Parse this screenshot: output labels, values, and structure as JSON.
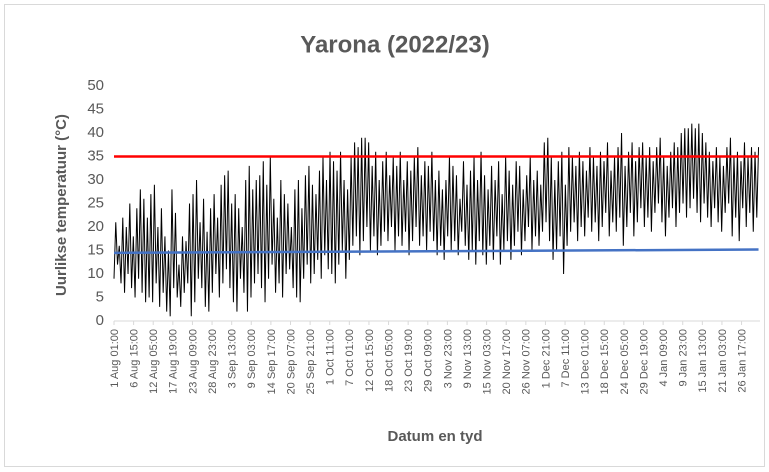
{
  "chart_data": {
    "type": "line",
    "title": "Yarona (2022/23)",
    "x_label": "Datum en tyd",
    "y_label": "Uurlikse temperatuur (°C)",
    "xlim": [
      0,
      4414
    ],
    "xticks": [
      {
        "value": 0,
        "label": "1 Aug 01:00"
      },
      {
        "value": 134,
        "label": "6 Aug 15:00"
      },
      {
        "value": 268,
        "label": "12 Aug 05:00"
      },
      {
        "value": 402,
        "label": "17 Aug 19:00"
      },
      {
        "value": 536,
        "label": "23 Aug 09:00"
      },
      {
        "value": 670,
        "label": "28 Aug 23:00"
      },
      {
        "value": 804,
        "label": "3 Sep 13:00"
      },
      {
        "value": 938,
        "label": "9 Sep 03:00"
      },
      {
        "value": 1072,
        "label": "14 Sep 17:00"
      },
      {
        "value": 1206,
        "label": "20 Sep 07:00"
      },
      {
        "value": 1340,
        "label": "25 Sep 21:00"
      },
      {
        "value": 1474,
        "label": "1 Oct 11:00"
      },
      {
        "value": 1608,
        "label": "7 Oct 01:00"
      },
      {
        "value": 1742,
        "label": "12 Oct 15:00"
      },
      {
        "value": 1876,
        "label": "18 Oct 05:00"
      },
      {
        "value": 2010,
        "label": "23 Oct 19:00"
      },
      {
        "value": 2144,
        "label": "29 Oct 09:00"
      },
      {
        "value": 2278,
        "label": "3 Nov 23:00"
      },
      {
        "value": 2412,
        "label": "9 Nov 13:00"
      },
      {
        "value": 2546,
        "label": "15 Nov 03:00"
      },
      {
        "value": 2680,
        "label": "20 Nov 17:00"
      },
      {
        "value": 2814,
        "label": "26 Nov 07:00"
      },
      {
        "value": 2948,
        "label": "1 Dec 21:00"
      },
      {
        "value": 3082,
        "label": "7 Dec 11:00"
      },
      {
        "value": 3216,
        "label": "13 Dec 01:00"
      },
      {
        "value": 3350,
        "label": "18 Dec 15:00"
      },
      {
        "value": 3484,
        "label": "24 Dec 05:00"
      },
      {
        "value": 3618,
        "label": "29 Dec 19:00"
      },
      {
        "value": 3752,
        "label": "4 Jan 09:00"
      },
      {
        "value": 3886,
        "label": "9 Jan 23:00"
      },
      {
        "value": 4020,
        "label": "15 Jan 13:00"
      },
      {
        "value": 4154,
        "label": "21 Jan 03:00"
      },
      {
        "value": 4288,
        "label": "26 Jan 17:00"
      }
    ],
    "ylim": [
      0,
      50
    ],
    "yticks": [
      0,
      5,
      10,
      15,
      20,
      25,
      30,
      35,
      40,
      45,
      50
    ],
    "grid": false,
    "series": [
      {
        "color": "#000000",
        "x": [
          0,
          12,
          24,
          36,
          48,
          60,
          72,
          84,
          96,
          108,
          120,
          132,
          144,
          156,
          168,
          180,
          192,
          204,
          216,
          228,
          240,
          252,
          264,
          276,
          288,
          300,
          312,
          324,
          336,
          348,
          360,
          372,
          384,
          396,
          408,
          420,
          432,
          444,
          456,
          468,
          480,
          492,
          504,
          516,
          528,
          540,
          552,
          564,
          576,
          588,
          600,
          612,
          624,
          636,
          648,
          660,
          672,
          684,
          696,
          708,
          720,
          732,
          744,
          756,
          768,
          780,
          792,
          804,
          816,
          828,
          840,
          852,
          864,
          876,
          888,
          900,
          912,
          924,
          936,
          948,
          960,
          972,
          984,
          996,
          1008,
          1020,
          1032,
          1044,
          1056,
          1068,
          1080,
          1092,
          1104,
          1116,
          1128,
          1140,
          1152,
          1164,
          1176,
          1188,
          1200,
          1212,
          1224,
          1236,
          1248,
          1260,
          1272,
          1284,
          1296,
          1308,
          1320,
          1332,
          1344,
          1356,
          1368,
          1380,
          1392,
          1404,
          1416,
          1428,
          1440,
          1452,
          1464,
          1476,
          1488,
          1500,
          1512,
          1524,
          1536,
          1548,
          1560,
          1572,
          1584,
          1596,
          1608,
          1620,
          1632,
          1644,
          1656,
          1668,
          1680,
          1692,
          1704,
          1716,
          1728,
          1740,
          1752,
          1764,
          1776,
          1788,
          1800,
          1812,
          1824,
          1836,
          1848,
          1860,
          1872,
          1884,
          1896,
          1908,
          1920,
          1932,
          1944,
          1956,
          1968,
          1980,
          1992,
          2004,
          2016,
          2028,
          2040,
          2052,
          2064,
          2076,
          2088,
          2100,
          2112,
          2124,
          2136,
          2148,
          2160,
          2172,
          2184,
          2196,
          2208,
          2220,
          2232,
          2244,
          2256,
          2268,
          2280,
          2292,
          2304,
          2316,
          2328,
          2340,
          2352,
          2364,
          2376,
          2388,
          2400,
          2412,
          2424,
          2436,
          2448,
          2460,
          2472,
          2484,
          2496,
          2508,
          2520,
          2532,
          2544,
          2556,
          2568,
          2580,
          2592,
          2604,
          2616,
          2628,
          2640,
          2652,
          2664,
          2676,
          2688,
          2700,
          2712,
          2724,
          2736,
          2748,
          2760,
          2772,
          2784,
          2796,
          2808,
          2820,
          2832,
          2844,
          2856,
          2868,
          2880,
          2892,
          2904,
          2916,
          2928,
          2940,
          2952,
          2964,
          2976,
          2988,
          3000,
          3012,
          3024,
          3036,
          3048,
          3060,
          3072,
          3084,
          3096,
          3108,
          3120,
          3132,
          3144,
          3156,
          3168,
          3180,
          3192,
          3204,
          3216,
          3228,
          3240,
          3252,
          3264,
          3276,
          3288,
          3300,
          3312,
          3324,
          3336,
          3348,
          3360,
          3372,
          3384,
          3396,
          3408,
          3420,
          3432,
          3444,
          3456,
          3468,
          3480,
          3492,
          3504,
          3516,
          3528,
          3540,
          3552,
          3564,
          3576,
          3588,
          3600,
          3612,
          3624,
          3636,
          3648,
          3660,
          3672,
          3684,
          3696,
          3708,
          3720,
          3732,
          3744,
          3756,
          3768,
          3780,
          3792,
          3804,
          3816,
          3828,
          3840,
          3852,
          3864,
          3876,
          3888,
          3900,
          3912,
          3924,
          3936,
          3948,
          3960,
          3972,
          3984,
          3996,
          4008,
          4020,
          4032,
          4044,
          4056,
          4068,
          4080,
          4092,
          4104,
          4116,
          4128,
          4140,
          4152,
          4164,
          4176,
          4188,
          4200,
          4212,
          4224,
          4236,
          4248,
          4260,
          4272,
          4284,
          4296,
          4308,
          4320,
          4332,
          4344,
          4356,
          4368,
          4380,
          4392,
          4404
        ],
        "values": [
          9,
          21,
          12,
          16,
          8,
          22,
          6,
          20,
          10,
          25,
          7,
          18,
          5,
          24,
          9,
          28,
          6,
          26,
          4,
          22,
          5,
          27,
          4,
          29,
          8,
          20,
          3,
          24,
          6,
          18,
          2,
          15,
          1,
          28,
          7,
          23,
          5,
          12,
          3,
          18,
          6,
          17,
          8,
          25,
          1,
          27,
          4,
          30,
          9,
          21,
          7,
          26,
          3,
          19,
          2,
          24,
          6,
          27,
          10,
          22,
          5,
          29,
          8,
          31,
          11,
          32,
          7,
          25,
          4,
          27,
          2,
          24,
          9,
          20,
          6,
          30,
          2,
          33,
          5,
          28,
          8,
          30,
          10,
          31,
          7,
          34,
          4,
          29,
          9,
          35,
          12,
          26,
          6,
          22,
          8,
          30,
          5,
          27,
          10,
          25,
          11,
          20,
          7,
          28,
          5,
          30,
          4,
          24,
          9,
          31,
          12,
          33,
          8,
          29,
          10,
          27,
          13,
          32,
          9,
          35,
          14,
          30,
          11,
          36,
          10,
          34,
          8,
          32,
          12,
          36,
          15,
          30,
          9,
          28,
          13,
          35,
          16,
          38,
          18,
          37,
          14,
          39,
          17,
          39,
          20,
          38,
          15,
          33,
          18,
          36,
          14,
          30,
          16,
          34,
          19,
          36,
          17,
          31,
          20,
          35,
          15,
          33,
          18,
          36,
          16,
          30,
          19,
          34,
          14,
          32,
          17,
          35,
          20,
          37,
          16,
          31,
          18,
          34,
          15,
          33,
          19,
          36,
          17,
          30,
          14,
          32,
          16,
          28,
          13,
          30,
          18,
          35,
          15,
          33,
          17,
          31,
          14,
          26,
          19,
          34,
          16,
          29,
          13,
          32,
          15,
          35,
          12,
          30,
          17,
          36,
          14,
          31,
          12,
          28,
          16,
          33,
          13,
          30,
          18,
          34,
          12,
          27,
          15,
          35,
          17,
          32,
          13,
          29,
          16,
          34,
          19,
          33,
          14,
          28,
          17,
          31,
          20,
          35,
          15,
          30,
          18,
          32,
          16,
          29,
          19,
          38,
          21,
          39,
          17,
          35,
          13,
          30,
          15,
          34,
          18,
          36,
          10,
          29,
          16,
          37,
          19,
          35,
          21,
          33,
          17,
          36,
          20,
          34,
          18,
          32,
          22,
          37,
          19,
          35,
          21,
          33,
          17,
          36,
          20,
          34,
          23,
          38,
          18,
          32,
          21,
          35,
          19,
          37,
          22,
          40,
          16,
          33,
          20,
          36,
          23,
          38,
          18,
          34,
          21,
          37,
          24,
          38,
          20,
          35,
          22,
          37,
          19,
          34,
          23,
          37,
          25,
          39,
          21,
          35,
          18,
          33,
          22,
          36,
          24,
          38,
          20,
          37,
          23,
          40,
          25,
          41,
          22,
          41,
          24,
          42,
          26,
          41,
          23,
          42,
          21,
          40,
          25,
          38,
          22,
          36,
          20,
          34,
          24,
          37,
          21,
          35,
          19,
          33,
          23,
          37,
          25,
          39,
          18,
          35,
          22,
          36,
          17,
          34,
          24,
          38,
          20,
          35,
          23,
          37,
          19,
          36,
          22,
          37
        ]
      },
      {
        "color": "#ff0000",
        "x": [
          0,
          4404
        ],
        "values": [
          35,
          35
        ]
      },
      {
        "color": "#4472c4",
        "x": [
          0,
          4404
        ],
        "values": [
          14.5,
          15.2
        ]
      }
    ]
  }
}
